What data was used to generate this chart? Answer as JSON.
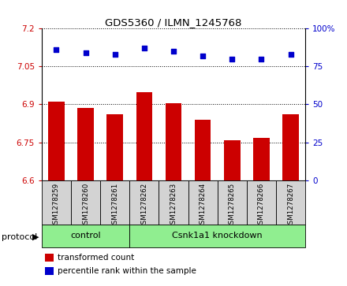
{
  "title": "GDS5360 / ILMN_1245768",
  "samples": [
    "GSM1278259",
    "GSM1278260",
    "GSM1278261",
    "GSM1278262",
    "GSM1278263",
    "GSM1278264",
    "GSM1278265",
    "GSM1278266",
    "GSM1278267"
  ],
  "bar_values": [
    6.912,
    6.887,
    6.862,
    6.948,
    6.905,
    6.838,
    6.758,
    6.768,
    6.862
  ],
  "scatter_values": [
    86,
    84,
    83,
    87,
    85,
    82,
    80,
    80,
    83
  ],
  "n_control": 3,
  "n_knockdown": 6,
  "ylim_left": [
    6.6,
    7.2
  ],
  "ylim_right": [
    0,
    100
  ],
  "yticks_left": [
    6.6,
    6.75,
    6.9,
    7.05,
    7.2
  ],
  "ytick_labels_left": [
    "6.6",
    "6.75",
    "6.9",
    "7.05",
    "7.2"
  ],
  "yticks_right": [
    0,
    25,
    50,
    75,
    100
  ],
  "ytick_labels_right": [
    "0",
    "25",
    "50",
    "75",
    "100%"
  ],
  "bar_color": "#cc0000",
  "scatter_color": "#0000cc",
  "sample_bg_color": "#d3d3d3",
  "control_color": "#90ee90",
  "knockdown_color": "#90ee90",
  "protocol_label": "protocol",
  "control_label": "control",
  "knockdown_label": "Csnk1a1 knockdown",
  "legend_bar_label": "transformed count",
  "legend_scatter_label": "percentile rank within the sample",
  "left_tick_color": "#cc0000",
  "right_tick_color": "#0000cc"
}
